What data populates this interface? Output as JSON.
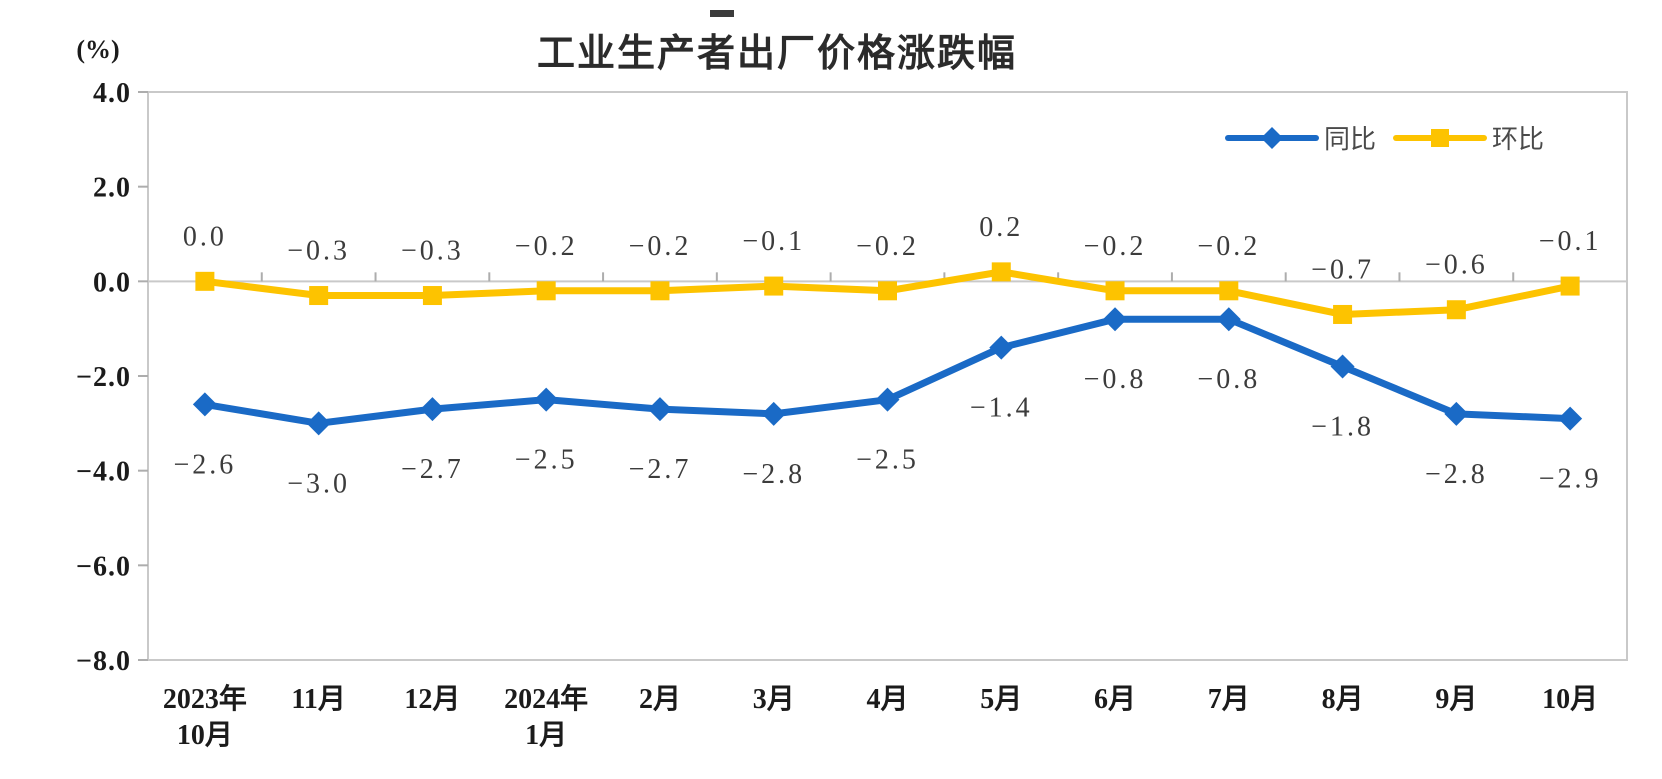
{
  "page": {
    "title": "工业生产者出厂价格涨跌幅",
    "unit_label": "(%)"
  },
  "legend": {
    "items": [
      {
        "label": "同比",
        "marker": "diamond",
        "color": "#1a6ac6"
      },
      {
        "label": "环比",
        "marker": "square",
        "color": "#fdc300"
      }
    ]
  },
  "chart_data": {
    "type": "line",
    "title": "工业生产者出厂价格涨跌幅",
    "unit": "(%)",
    "categories": [
      "2023年\n10月",
      "11月",
      "12月",
      "2024年\n1月",
      "2月",
      "3月",
      "4月",
      "5月",
      "6月",
      "7月",
      "8月",
      "9月",
      "10月"
    ],
    "series": [
      {
        "name": "同比",
        "marker": "diamond",
        "color": "#1a6ac6",
        "values": [
          -2.6,
          -3.0,
          -2.7,
          -2.5,
          -2.7,
          -2.8,
          -2.5,
          -1.4,
          -0.8,
          -0.8,
          -1.8,
          -2.8,
          -2.9
        ],
        "labels": [
          "-2.6",
          "-3.0",
          "-2.7",
          "-2.5",
          "-2.7",
          "-2.8",
          "-2.5",
          "-1.4",
          "-0.8",
          "-0.8",
          "-1.8",
          "-2.8",
          "-2.9"
        ],
        "label_position": "below"
      },
      {
        "name": "环比",
        "marker": "square",
        "color": "#fdc300",
        "values": [
          0.0,
          -0.3,
          -0.3,
          -0.2,
          -0.2,
          -0.1,
          -0.2,
          0.2,
          -0.2,
          -0.2,
          -0.7,
          -0.6,
          -0.1
        ],
        "labels": [
          "0.0",
          "-0.3",
          "-0.3",
          "-0.2",
          "-0.2",
          "-0.1",
          "-0.2",
          "0.2",
          "-0.2",
          "-0.2",
          "-0.7",
          "-0.6",
          "-0.1"
        ],
        "label_position": "above"
      }
    ],
    "ylim": [
      -8.0,
      4.0
    ],
    "yticks": [
      4.0,
      2.0,
      0.0,
      -2.0,
      -4.0,
      -6.0,
      -8.0
    ],
    "ytick_labels": [
      "4.0",
      "2.0",
      "0.0",
      "-2.0",
      "-4.0",
      "-6.0",
      "-8.0"
    ],
    "grid": false,
    "data_labels": true,
    "legend_position": "top-right-inside",
    "axis_color": "#c9c9c9",
    "tick_color": "#adadad"
  }
}
